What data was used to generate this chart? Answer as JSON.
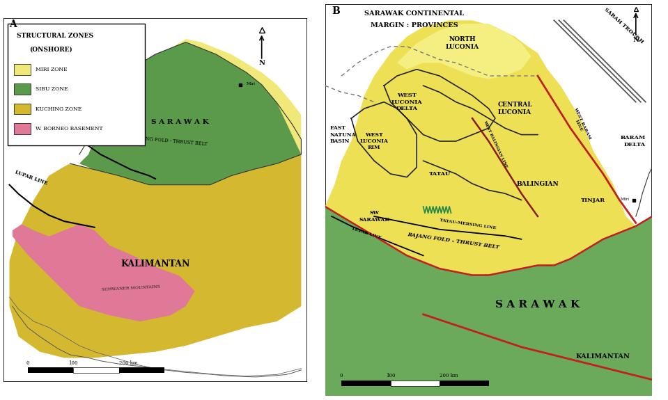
{
  "colors": {
    "miri_zone": "#F0E878",
    "sibu_zone": "#5A9A4A",
    "kuching_zone": "#D4B830",
    "w_borneo": "#E07898",
    "yellow_province": "#EDE055",
    "green_sarawak": "#6AAA5A",
    "background": "#FFFFFF",
    "line_dark": "#222222",
    "line_red": "#C02020",
    "line_brown": "#8B1A1A"
  },
  "legend_items": [
    [
      "#F0E878",
      "MIRI ZONE"
    ],
    [
      "#5A9A4A",
      "SIBU ZONE"
    ],
    [
      "#D4B830",
      "KUCHING ZONE"
    ],
    [
      "#E07898",
      "W. BORNEO BASEMENT"
    ]
  ]
}
